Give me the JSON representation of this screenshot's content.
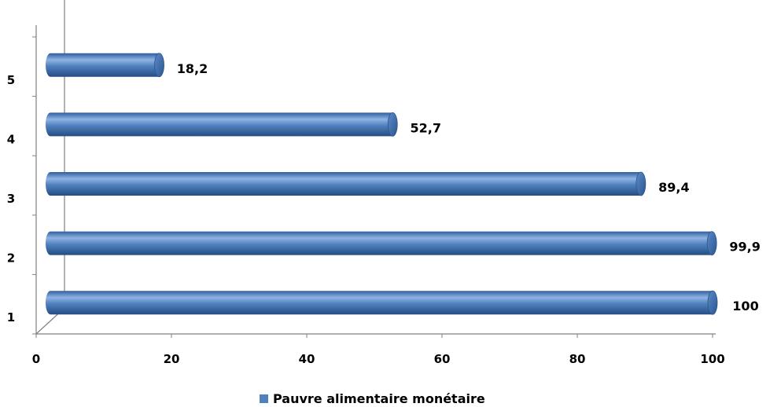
{
  "chart_data": {
    "type": "bar",
    "orientation": "horizontal",
    "categories": [
      "1",
      "2",
      "3",
      "4",
      "5"
    ],
    "series": [
      {
        "name": "Pauvre alimentaire monétaire",
        "values": [
          100,
          99.9,
          89.4,
          52.7,
          18.2
        ]
      }
    ],
    "data_labels": [
      "100",
      "99,9",
      "89,4",
      "52,7",
      "18,2"
    ],
    "xticks": [
      "0",
      "20",
      "40",
      "60",
      "80",
      "100"
    ],
    "xlim": [
      0,
      100
    ],
    "title": "",
    "xlabel": "",
    "ylabel": "",
    "grid": false,
    "legend_position": "bottom",
    "style": "3d-cylinder",
    "colors": {
      "bar": "#4F81BD",
      "bar_dark": "#2B5591",
      "bar_light": "#8FB3E3",
      "axis": "#808080"
    }
  }
}
